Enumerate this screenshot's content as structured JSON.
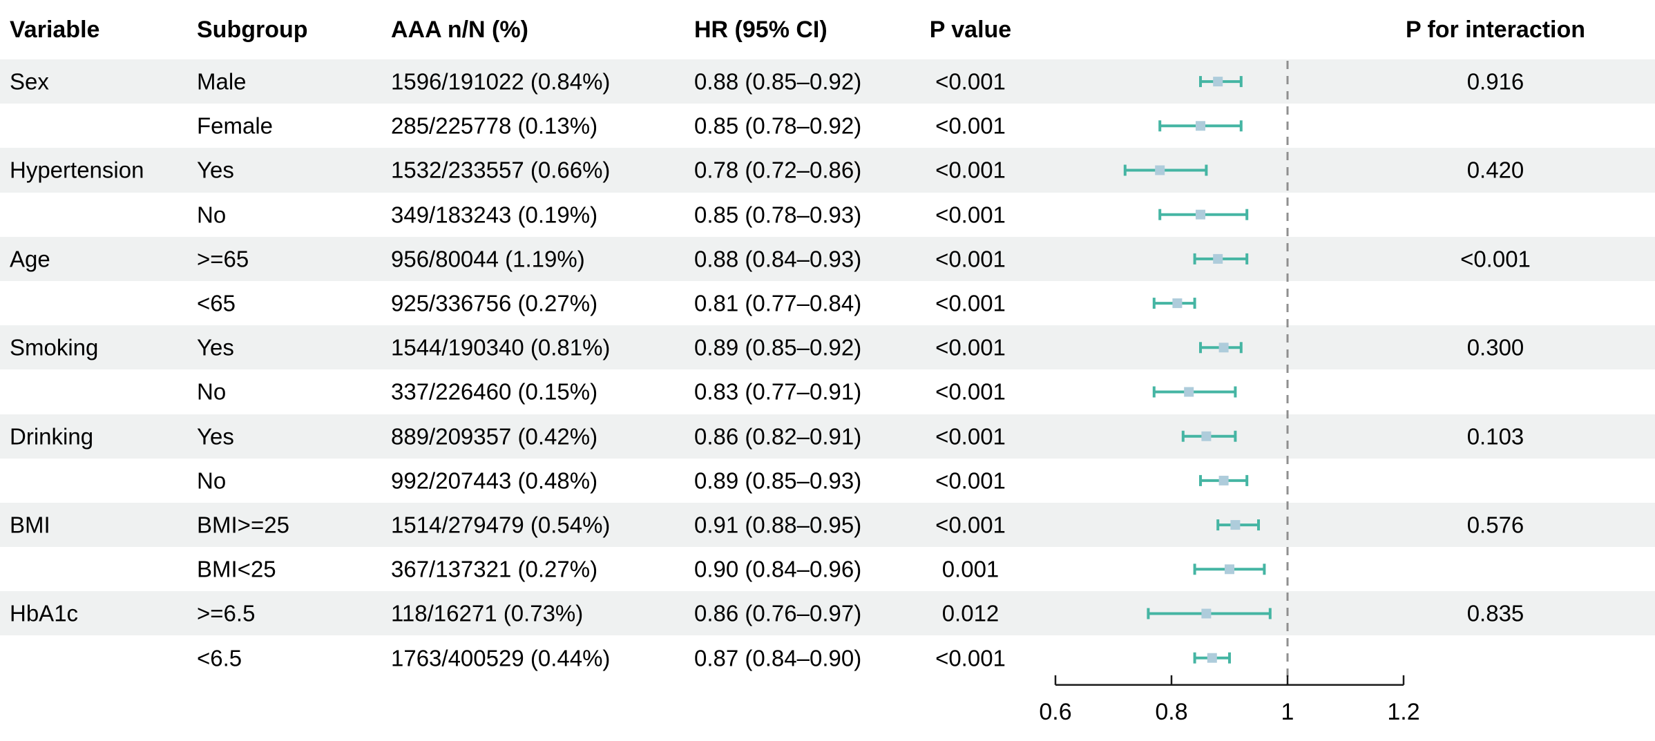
{
  "colors": {
    "stripe": "#eff1f1",
    "ci": "#45b5a3",
    "marker": "#aeccdb",
    "reference_line": "#8f8f8f",
    "axis": "#1a1a1a",
    "text": "#000000"
  },
  "chart_data": {
    "type": "forest",
    "title": "",
    "columns": [
      "Variable",
      "Subgroup",
      "AAA n/N (%)",
      "HR (95% CI)",
      "P value",
      "P for interaction"
    ],
    "axis": {
      "range": [
        0.6,
        1.2
      ],
      "ticks": [
        0.6,
        0.8,
        1,
        1.2
      ],
      "tick_labels": [
        "0.6",
        "0.8",
        "1",
        "1.2"
      ],
      "reference_line": 1
    },
    "rows": [
      {
        "variable": "Sex",
        "subgroup": "Male",
        "aaa": "1596/191022 (0.84%)",
        "hr_text": "0.88 (0.85–0.92)",
        "p": "<0.001",
        "p_interaction": "0.916",
        "hr": 0.88,
        "lo": 0.85,
        "hi": 0.92,
        "shaded": true
      },
      {
        "variable": "",
        "subgroup": "Female",
        "aaa": "285/225778 (0.13%)",
        "hr_text": "0.85 (0.78–0.92)",
        "p": "<0.001",
        "p_interaction": "",
        "hr": 0.85,
        "lo": 0.78,
        "hi": 0.92,
        "shaded": false
      },
      {
        "variable": "Hypertension",
        "subgroup": "Yes",
        "aaa": "1532/233557 (0.66%)",
        "hr_text": "0.78 (0.72–0.86)",
        "p": "<0.001",
        "p_interaction": "0.420",
        "hr": 0.78,
        "lo": 0.72,
        "hi": 0.86,
        "shaded": true
      },
      {
        "variable": "",
        "subgroup": "No",
        "aaa": "349/183243 (0.19%)",
        "hr_text": "0.85 (0.78–0.93)",
        "p": "<0.001",
        "p_interaction": "",
        "hr": 0.85,
        "lo": 0.78,
        "hi": 0.93,
        "shaded": false
      },
      {
        "variable": "Age",
        "subgroup": ">=65",
        "aaa": "956/80044 (1.19%)",
        "hr_text": "0.88 (0.84–0.93)",
        "p": "<0.001",
        "p_interaction": "<0.001",
        "hr": 0.88,
        "lo": 0.84,
        "hi": 0.93,
        "shaded": true
      },
      {
        "variable": "",
        "subgroup": "<65",
        "aaa": "925/336756 (0.27%)",
        "hr_text": "0.81 (0.77–0.84)",
        "p": "<0.001",
        "p_interaction": "",
        "hr": 0.81,
        "lo": 0.77,
        "hi": 0.84,
        "shaded": false
      },
      {
        "variable": "Smoking",
        "subgroup": "Yes",
        "aaa": "1544/190340 (0.81%)",
        "hr_text": "0.89 (0.85–0.92)",
        "p": "<0.001",
        "p_interaction": "0.300",
        "hr": 0.89,
        "lo": 0.85,
        "hi": 0.92,
        "shaded": true
      },
      {
        "variable": "",
        "subgroup": "No",
        "aaa": "337/226460 (0.15%)",
        "hr_text": "0.83 (0.77–0.91)",
        "p": "<0.001",
        "p_interaction": "",
        "hr": 0.83,
        "lo": 0.77,
        "hi": 0.91,
        "shaded": false
      },
      {
        "variable": "Drinking",
        "subgroup": "Yes",
        "aaa": "889/209357 (0.42%)",
        "hr_text": "0.86 (0.82–0.91)",
        "p": "<0.001",
        "p_interaction": "0.103",
        "hr": 0.86,
        "lo": 0.82,
        "hi": 0.91,
        "shaded": true
      },
      {
        "variable": "",
        "subgroup": "No",
        "aaa": "992/207443 (0.48%)",
        "hr_text": "0.89 (0.85–0.93)",
        "p": "<0.001",
        "p_interaction": "",
        "hr": 0.89,
        "lo": 0.85,
        "hi": 0.93,
        "shaded": false
      },
      {
        "variable": "BMI",
        "subgroup": "BMI>=25",
        "aaa": "1514/279479 (0.54%)",
        "hr_text": "0.91 (0.88–0.95)",
        "p": "<0.001",
        "p_interaction": "0.576",
        "hr": 0.91,
        "lo": 0.88,
        "hi": 0.95,
        "shaded": true
      },
      {
        "variable": "",
        "subgroup": "BMI<25",
        "aaa": "367/137321 (0.27%)",
        "hr_text": "0.90 (0.84–0.96)",
        "p": "0.001",
        "p_interaction": "",
        "hr": 0.9,
        "lo": 0.84,
        "hi": 0.96,
        "shaded": false
      },
      {
        "variable": "HbA1c",
        "subgroup": ">=6.5",
        "aaa": "118/16271 (0.73%)",
        "hr_text": "0.86 (0.76–0.97)",
        "p": "0.012",
        "p_interaction": "0.835",
        "hr": 0.86,
        "lo": 0.76,
        "hi": 0.97,
        "shaded": true
      },
      {
        "variable": "",
        "subgroup": "<6.5",
        "aaa": "1763/400529 (0.44%)",
        "hr_text": "0.87 (0.84–0.90)",
        "p": "<0.001",
        "p_interaction": "",
        "hr": 0.87,
        "lo": 0.84,
        "hi": 0.9,
        "shaded": false
      }
    ]
  }
}
